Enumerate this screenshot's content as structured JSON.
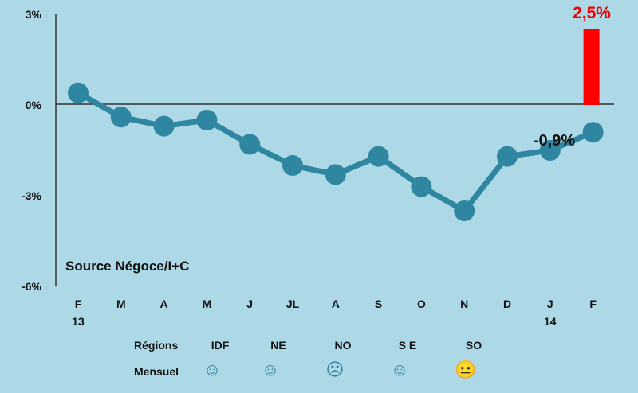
{
  "chart_data": {
    "type": "line",
    "categories": [
      "F",
      "M",
      "A",
      "M",
      "J",
      "JL",
      "A",
      "S",
      "O",
      "N",
      "D",
      "J",
      "F"
    ],
    "sub_labels": [
      "13",
      "",
      "",
      "",
      "",
      "",
      "",
      "",
      "",
      "",
      "",
      "14",
      ""
    ],
    "series": [
      {
        "name": "Mensuel",
        "type": "line",
        "values": [
          0.4,
          -0.4,
          -0.7,
          -0.5,
          -1.3,
          -2.0,
          -2.3,
          -1.7,
          -2.7,
          -3.5,
          -1.7,
          -1.5,
          -0.9
        ],
        "color": "#2e86a0"
      },
      {
        "name": "Bar",
        "type": "bar",
        "category_index": 12,
        "value": 2.5,
        "color": "#ff0000"
      }
    ],
    "ylim": [
      -6,
      3
    ],
    "yticks": [
      3,
      0,
      -3,
      -6
    ],
    "ytick_labels": [
      "3%",
      "0%",
      "-3%",
      "-6%"
    ],
    "annotations": {
      "bar_label": "2,5%",
      "line_label": "-0,9%"
    },
    "source": "Source Négoce/I+C",
    "regions": {
      "label": "Régions",
      "row_label": "Mensuel",
      "items": [
        {
          "name": "IDF",
          "face": "☺"
        },
        {
          "name": "NE",
          "face": "☺"
        },
        {
          "name": "NO",
          "face": "☹"
        },
        {
          "name": "S E",
          "face": "☺"
        },
        {
          "name": "SO",
          "face": "😐"
        }
      ]
    }
  },
  "colors": {
    "background": "#add8e6",
    "axis": "#333333",
    "line": "#2e86a0",
    "bar": "#ff0000"
  }
}
